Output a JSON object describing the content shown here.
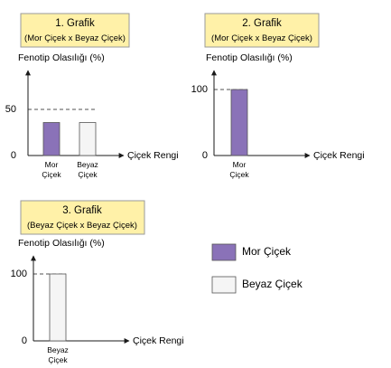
{
  "colors": {
    "title_box_fill": "#fff1a8",
    "title_box_stroke": "#9a9a9a",
    "purple": "#8a72b8",
    "white_bar": "#f5f5f5",
    "axis": "#1a1a1a"
  },
  "chart_data": [
    {
      "type": "bar",
      "title": "1. Grafik",
      "subtitle": "(Mor Çiçek x Beyaz Çiçek)",
      "ylabel": "Fenotip Olasılığı (%)",
      "xlabel": "Çiçek Rengi",
      "y_ticks": [
        {
          "label": "0",
          "value": 0
        },
        {
          "label": "50",
          "value": 50
        }
      ],
      "ylim": [
        0,
        100
      ],
      "categories": [
        {
          "label1": "Mor",
          "label2": "Çiçek"
        },
        {
          "label1": "Beyaz",
          "label2": "Çiçek"
        }
      ],
      "values": [
        50,
        50
      ],
      "bar_colors": [
        "#8a72b8",
        "#f5f5f5"
      ],
      "grid": false
    },
    {
      "type": "bar",
      "title": "2. Grafik",
      "subtitle": "(Mor Çiçek x Beyaz Çiçek)",
      "ylabel": "Fenotip Olasılığı (%)",
      "xlabel": "Çiçek Rengi",
      "y_ticks": [
        {
          "label": "0",
          "value": 0
        },
        {
          "label": "100",
          "value": 100
        }
      ],
      "ylim": [
        0,
        100
      ],
      "categories": [
        {
          "label1": "Mor",
          "label2": "Çiçek"
        }
      ],
      "values": [
        100
      ],
      "bar_colors": [
        "#8a72b8"
      ],
      "grid": false
    },
    {
      "type": "bar",
      "title": "3. Grafik",
      "subtitle": "(Beyaz Çiçek x Beyaz Çiçek)",
      "ylabel": "Fenotip Olasılığı (%)",
      "xlabel": "Çiçek Rengi",
      "y_ticks": [
        {
          "label": "0",
          "value": 0
        },
        {
          "label": "100",
          "value": 100
        }
      ],
      "ylim": [
        0,
        100
      ],
      "categories": [
        {
          "label1": "Beyaz",
          "label2": "Çiçek"
        }
      ],
      "values": [
        100
      ],
      "bar_colors": [
        "#f5f5f5"
      ],
      "grid": false
    }
  ],
  "legend": {
    "items": [
      {
        "label": "Mor Çiçek",
        "color": "#8a72b8"
      },
      {
        "label": "Beyaz Çiçek",
        "color": "#f5f5f5"
      }
    ]
  }
}
